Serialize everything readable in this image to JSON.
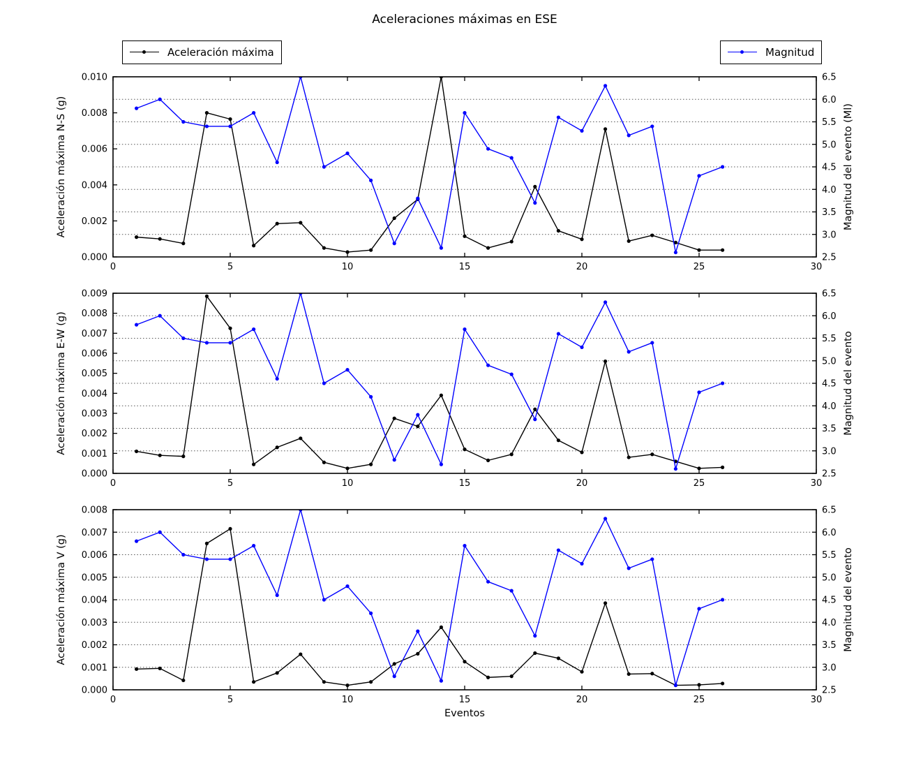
{
  "title": "Aceleraciones máximas en ESE",
  "x_axis_label": "Eventos",
  "legends": {
    "accel_label": "Aceleración máxima",
    "mag_label": "Magnitud"
  },
  "colors": {
    "accel": "#000000",
    "mag": "#0000ff",
    "grid": "#555555"
  },
  "chart_data": [
    {
      "type": "line",
      "name": "chart-ns",
      "ylabel_left": "Aceleración máxima N-S (g)",
      "ylabel_right": "Magnitud del evento (Ml)",
      "xlim": [
        0,
        30
      ],
      "xticks": [
        "0",
        "5",
        "10",
        "15",
        "20",
        "25",
        "30"
      ],
      "ylim_left": [
        0,
        0.01
      ],
      "yticks_left": [
        "0.000",
        "0.002",
        "0.004",
        "0.006",
        "0.008",
        "0.010"
      ],
      "ylim_right": [
        2.5,
        6.5
      ],
      "yticks_right": [
        "2.5",
        "3.0",
        "3.5",
        "4.0",
        "4.5",
        "5.0",
        "5.5",
        "6.0",
        "6.5"
      ],
      "grid_right_values": [
        3.0,
        3.5,
        4.0,
        4.5,
        5.0,
        5.5,
        6.0
      ],
      "x": [
        1,
        2,
        3,
        4,
        5,
        6,
        7,
        8,
        9,
        10,
        11,
        12,
        13,
        14,
        15,
        16,
        17,
        18,
        19,
        20,
        21,
        22,
        23,
        24,
        25,
        26
      ],
      "series": [
        {
          "name": "Aceleración máxima",
          "axis": "left",
          "color": "#000000",
          "values": [
            0.0011,
            0.001,
            0.00075,
            0.008,
            0.00765,
            0.00063,
            0.00185,
            0.0019,
            0.0005,
            0.00027,
            0.00038,
            0.00215,
            0.0032,
            0.01,
            0.00115,
            0.0005,
            0.00085,
            0.0039,
            0.00145,
            0.00098,
            0.0071,
            0.00088,
            0.0012,
            0.0008,
            0.00038,
            0.00038
          ]
        },
        {
          "name": "Magnitud",
          "axis": "right",
          "color": "#0000ff",
          "values": [
            5.8,
            6.0,
            5.5,
            5.4,
            5.4,
            5.7,
            4.6,
            6.5,
            4.5,
            4.8,
            4.2,
            2.8,
            3.8,
            2.7,
            5.7,
            4.9,
            4.7,
            3.7,
            5.6,
            5.3,
            6.3,
            5.2,
            5.4,
            2.6,
            4.3,
            4.5
          ]
        }
      ]
    },
    {
      "type": "line",
      "name": "chart-ew",
      "ylabel_left": "Aceleración máxima E-W (g)",
      "ylabel_right": "Magnitud del evento",
      "xlim": [
        0,
        30
      ],
      "xticks": [
        "0",
        "5",
        "10",
        "15",
        "20",
        "25",
        "30"
      ],
      "ylim_left": [
        0,
        0.009
      ],
      "yticks_left": [
        "0.000",
        "0.001",
        "0.002",
        "0.003",
        "0.004",
        "0.005",
        "0.006",
        "0.007",
        "0.008",
        "0.009"
      ],
      "ylim_right": [
        2.5,
        6.5
      ],
      "yticks_right": [
        "2.5",
        "3.0",
        "3.5",
        "4.0",
        "4.5",
        "5.0",
        "5.5",
        "6.0",
        "6.5"
      ],
      "grid_right_values": [
        3.0,
        3.5,
        4.0,
        4.5,
        5.0,
        5.5,
        6.0
      ],
      "x": [
        1,
        2,
        3,
        4,
        5,
        6,
        7,
        8,
        9,
        10,
        11,
        12,
        13,
        14,
        15,
        16,
        17,
        18,
        19,
        20,
        21,
        22,
        23,
        24,
        25,
        26
      ],
      "series": [
        {
          "name": "Aceleración máxima",
          "axis": "left",
          "color": "#000000",
          "values": [
            0.0011,
            0.0009,
            0.00085,
            0.00885,
            0.00725,
            0.00045,
            0.0013,
            0.00175,
            0.00055,
            0.00025,
            0.00045,
            0.00275,
            0.00235,
            0.0039,
            0.0012,
            0.00065,
            0.00095,
            0.0032,
            0.00165,
            0.00105,
            0.0056,
            0.0008,
            0.00095,
            0.0006,
            0.00025,
            0.0003
          ]
        },
        {
          "name": "Magnitud",
          "axis": "right",
          "color": "#0000ff",
          "values": [
            5.8,
            6.0,
            5.5,
            5.4,
            5.4,
            5.7,
            4.6,
            6.5,
            4.5,
            4.8,
            4.2,
            2.8,
            3.8,
            2.7,
            5.7,
            4.9,
            4.7,
            3.7,
            5.6,
            5.3,
            6.3,
            5.2,
            5.4,
            2.6,
            4.3,
            4.5
          ]
        }
      ]
    },
    {
      "type": "line",
      "name": "chart-v",
      "ylabel_left": "Aceleración máxima V (g)",
      "ylabel_right": "Magnitud del evento",
      "xlim": [
        0,
        30
      ],
      "xticks": [
        "0",
        "5",
        "10",
        "15",
        "20",
        "25",
        "30"
      ],
      "ylim_left": [
        0,
        0.008
      ],
      "yticks_left": [
        "0.000",
        "0.001",
        "0.002",
        "0.003",
        "0.004",
        "0.005",
        "0.006",
        "0.007",
        "0.008"
      ],
      "ylim_right": [
        2.5,
        6.5
      ],
      "yticks_right": [
        "2.5",
        "3.0",
        "3.5",
        "4.0",
        "4.5",
        "5.0",
        "5.5",
        "6.0",
        "6.5"
      ],
      "grid_right_values": [
        3.0,
        3.5,
        4.0,
        4.5,
        5.0,
        5.5,
        6.0
      ],
      "x": [
        1,
        2,
        3,
        4,
        5,
        6,
        7,
        8,
        9,
        10,
        11,
        12,
        13,
        14,
        15,
        16,
        17,
        18,
        19,
        20,
        21,
        22,
        23,
        24,
        25,
        26
      ],
      "series": [
        {
          "name": "Aceleración máxima",
          "axis": "left",
          "color": "#000000",
          "values": [
            0.00092,
            0.00095,
            0.00042,
            0.0065,
            0.00715,
            0.00035,
            0.00075,
            0.00158,
            0.00035,
            0.0002,
            0.00035,
            0.00115,
            0.0016,
            0.00278,
            0.00125,
            0.00055,
            0.0006,
            0.00163,
            0.0014,
            0.0008,
            0.00385,
            0.0007,
            0.00072,
            0.0002,
            0.00022,
            0.00028
          ]
        },
        {
          "name": "Magnitud",
          "axis": "right",
          "color": "#0000ff",
          "values": [
            5.8,
            6.0,
            5.5,
            5.4,
            5.4,
            5.7,
            4.6,
            6.5,
            4.5,
            4.8,
            4.2,
            2.8,
            3.8,
            2.7,
            5.7,
            4.9,
            4.7,
            3.7,
            5.6,
            5.3,
            6.3,
            5.2,
            5.4,
            2.6,
            4.3,
            4.5
          ]
        }
      ]
    }
  ]
}
